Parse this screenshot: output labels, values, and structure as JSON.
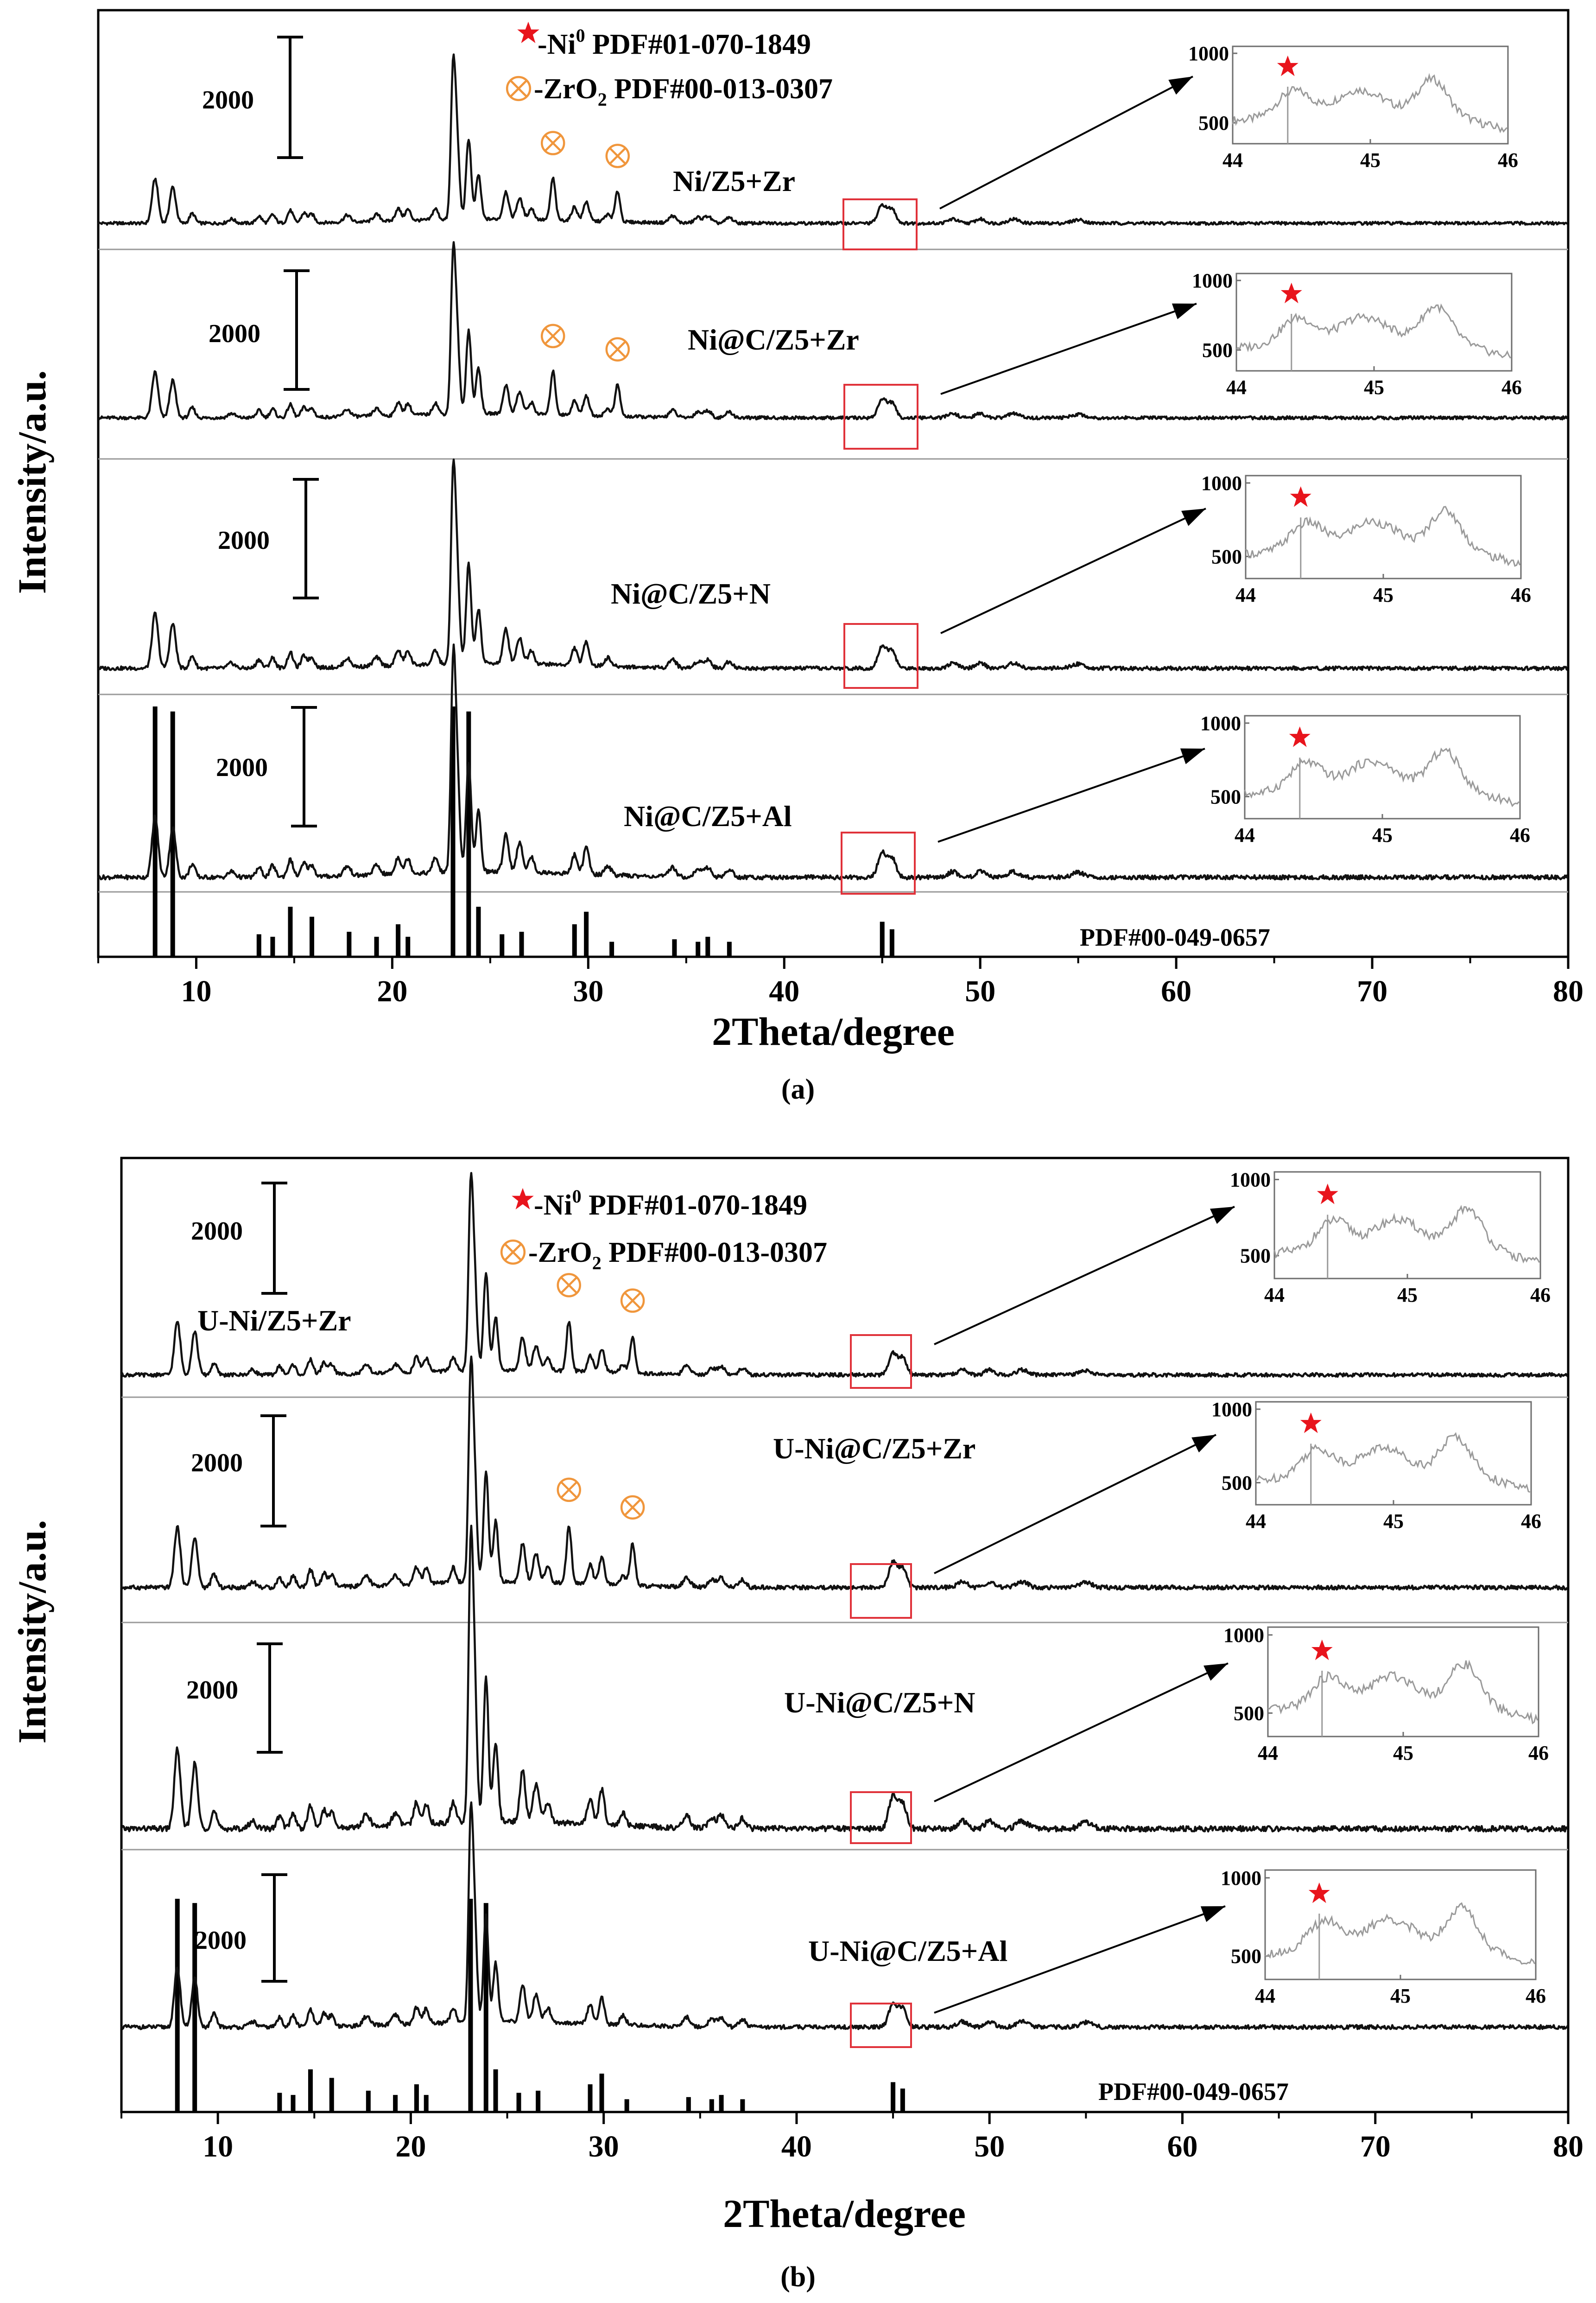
{
  "chart_data": [
    {
      "type": "line",
      "panel_label": "(a)",
      "xlabel": "2Theta/degree",
      "ylabel": "Intensity/a.u.",
      "xlim": [
        5,
        80
      ],
      "xticks": [
        "10",
        "20",
        "30",
        "40",
        "50",
        "60",
        "70",
        "80"
      ],
      "legend": {
        "ni_label": "-Ni",
        "ni_sup": "0",
        "ni_pdf": " PDF#01-070-1849",
        "zr_label": "-ZrO",
        "zr_sub": "2",
        "zr_pdf": " PDF#00-013-0307"
      },
      "scale_bar_label": "2000",
      "reference_label": "PDF#00-049-0657",
      "series": [
        {
          "name": "Ni/Z5+Zr",
          "zro2_peaks": [
            28.2,
            31.5
          ],
          "ni_peak": 44.4,
          "inset": {
            "xlim": [
              44,
              46
            ],
            "ylim": [
              350,
              1050
            ],
            "xticks": [
              "44",
              "45",
              "46"
            ],
            "yticks": [
              "500",
              "1000"
            ]
          }
        },
        {
          "name": "Ni@C/Z5+Zr",
          "zro2_peaks": [
            28.2,
            31.5
          ],
          "ni_peak": 44.4,
          "inset": {
            "xlim": [
              44,
              46
            ],
            "ylim": [
              350,
              1050
            ],
            "xticks": [
              "44",
              "45",
              "46"
            ],
            "yticks": [
              "500",
              "1000"
            ]
          }
        },
        {
          "name": "Ni@C/Z5+N",
          "zro2_peaks": [],
          "ni_peak": 44.4,
          "inset": {
            "xlim": [
              44,
              46
            ],
            "ylim": [
              350,
              1050
            ],
            "xticks": [
              "44",
              "45",
              "46"
            ],
            "yticks": [
              "500",
              "1000"
            ]
          }
        },
        {
          "name": "Ni@C/Z5+Al",
          "zro2_peaks": [],
          "ni_peak": 44.4,
          "inset": {
            "xlim": [
              44,
              46
            ],
            "ylim": [
              350,
              1050
            ],
            "xticks": [
              "44",
              "45",
              "46"
            ],
            "yticks": [
              "500",
              "1000"
            ]
          }
        }
      ]
    },
    {
      "type": "line",
      "panel_label": "(b)",
      "xlabel": "2Theta/degree",
      "ylabel": "Intensity/a.u.",
      "xlim": [
        5,
        80
      ],
      "xticks": [
        "10",
        "20",
        "30",
        "40",
        "50",
        "60",
        "70",
        "80"
      ],
      "legend": {
        "ni_label": "-Ni",
        "ni_sup": "0",
        "ni_pdf": " PDF#01-070-1849",
        "zr_label": "-ZrO",
        "zr_sub": "2",
        "zr_pdf": " PDF#00-013-0307"
      },
      "scale_bar_label": "2000",
      "reference_label": "PDF#00-049-0657",
      "series": [
        {
          "name": "U-Ni/Z5+Zr",
          "zro2_peaks": [
            28.2,
            31.5
          ],
          "ni_peak": 44.4,
          "inset": {
            "xlim": [
              44,
              46
            ],
            "ylim": [
              350,
              1050
            ],
            "xticks": [
              "44",
              "45",
              "46"
            ],
            "yticks": [
              "500",
              "1000"
            ]
          }
        },
        {
          "name": "U-Ni@C/Z5+Zr",
          "zro2_peaks": [
            28.2,
            31.5
          ],
          "ni_peak": 44.4,
          "inset": {
            "xlim": [
              44,
              46
            ],
            "ylim": [
              350,
              1050
            ],
            "xticks": [
              "44",
              "45",
              "46"
            ],
            "yticks": [
              "500",
              "1000"
            ]
          }
        },
        {
          "name": "U-Ni@C/Z5+N",
          "zro2_peaks": [],
          "ni_peak": 44.4,
          "inset": {
            "xlim": [
              44,
              46
            ],
            "ylim": [
              350,
              1050
            ],
            "xticks": [
              "44",
              "45",
              "46"
            ],
            "yticks": [
              "500",
              "1000"
            ]
          }
        },
        {
          "name": "U-Ni@C/Z5+Al",
          "zro2_peaks": [],
          "ni_peak": 44.4,
          "inset": {
            "xlim": [
              44,
              46
            ],
            "ylim": [
              350,
              1050
            ],
            "xticks": [
              "44",
              "45",
              "46"
            ],
            "yticks": [
              "500",
              "1000"
            ]
          }
        }
      ]
    }
  ],
  "zsm5_reference_peaks": [
    {
      "x": 7.9,
      "h": 1.0
    },
    {
      "x": 8.8,
      "h": 0.98
    },
    {
      "x": 13.2,
      "h": 0.09
    },
    {
      "x": 13.9,
      "h": 0.08
    },
    {
      "x": 14.8,
      "h": 0.2
    },
    {
      "x": 15.9,
      "h": 0.16
    },
    {
      "x": 17.8,
      "h": 0.1
    },
    {
      "x": 19.2,
      "h": 0.08
    },
    {
      "x": 20.3,
      "h": 0.13
    },
    {
      "x": 20.8,
      "h": 0.08
    },
    {
      "x": 23.1,
      "h": 1.0
    },
    {
      "x": 23.9,
      "h": 0.98
    },
    {
      "x": 24.4,
      "h": 0.2
    },
    {
      "x": 25.6,
      "h": 0.09
    },
    {
      "x": 26.6,
      "h": 0.1
    },
    {
      "x": 29.3,
      "h": 0.13
    },
    {
      "x": 29.9,
      "h": 0.18
    },
    {
      "x": 31.2,
      "h": 0.06
    },
    {
      "x": 34.4,
      "h": 0.07
    },
    {
      "x": 35.6,
      "h": 0.06
    },
    {
      "x": 36.1,
      "h": 0.08
    },
    {
      "x": 37.2,
      "h": 0.06
    },
    {
      "x": 45.0,
      "h": 0.14
    },
    {
      "x": 45.5,
      "h": 0.11
    }
  ],
  "diffraction_peaks": [
    {
      "x": 7.9,
      "h": 0.32,
      "w": 0.22
    },
    {
      "x": 8.8,
      "h": 0.26,
      "w": 0.22
    },
    {
      "x": 9.8,
      "h": 0.07,
      "w": 0.2
    },
    {
      "x": 11.8,
      "h": 0.03,
      "w": 0.25
    },
    {
      "x": 13.2,
      "h": 0.05,
      "w": 0.2
    },
    {
      "x": 13.9,
      "h": 0.06,
      "w": 0.2
    },
    {
      "x": 14.8,
      "h": 0.09,
      "w": 0.2
    },
    {
      "x": 15.5,
      "h": 0.07,
      "w": 0.2
    },
    {
      "x": 15.9,
      "h": 0.06,
      "w": 0.2
    },
    {
      "x": 17.7,
      "h": 0.05,
      "w": 0.25
    },
    {
      "x": 19.2,
      "h": 0.05,
      "w": 0.25
    },
    {
      "x": 20.3,
      "h": 0.09,
      "w": 0.2
    },
    {
      "x": 20.8,
      "h": 0.08,
      "w": 0.2
    },
    {
      "x": 22.2,
      "h": 0.08,
      "w": 0.2
    },
    {
      "x": 23.1,
      "h": 1.0,
      "w": 0.16
    },
    {
      "x": 23.3,
      "h": 0.55,
      "w": 0.18
    },
    {
      "x": 23.9,
      "h": 0.58,
      "w": 0.18
    },
    {
      "x": 24.4,
      "h": 0.32,
      "w": 0.18
    },
    {
      "x": 25.8,
      "h": 0.2,
      "w": 0.2
    },
    {
      "x": 26.5,
      "h": 0.15,
      "w": 0.22
    },
    {
      "x": 27.1,
      "h": 0.08,
      "w": 0.2
    },
    {
      "x": 29.3,
      "h": 0.1,
      "w": 0.2
    },
    {
      "x": 29.9,
      "h": 0.14,
      "w": 0.2
    },
    {
      "x": 31.0,
      "h": 0.05,
      "w": 0.22
    },
    {
      "x": 34.3,
      "h": 0.05,
      "w": 0.25
    },
    {
      "x": 35.6,
      "h": 0.04,
      "w": 0.25
    },
    {
      "x": 36.1,
      "h": 0.05,
      "w": 0.25
    },
    {
      "x": 37.2,
      "h": 0.04,
      "w": 0.25
    },
    {
      "x": 45.0,
      "h": 0.13,
      "w": 0.3
    },
    {
      "x": 45.5,
      "h": 0.1,
      "w": 0.28
    },
    {
      "x": 48.6,
      "h": 0.03,
      "w": 0.35
    },
    {
      "x": 50.0,
      "h": 0.03,
      "w": 0.35
    },
    {
      "x": 51.7,
      "h": 0.03,
      "w": 0.4
    },
    {
      "x": 55.0,
      "h": 0.025,
      "w": 0.45
    }
  ],
  "zro2_diffraction_peaks": [
    {
      "x": 28.2,
      "h": 0.3,
      "w": 0.18
    },
    {
      "x": 31.5,
      "h": 0.22,
      "w": 0.18
    }
  ]
}
